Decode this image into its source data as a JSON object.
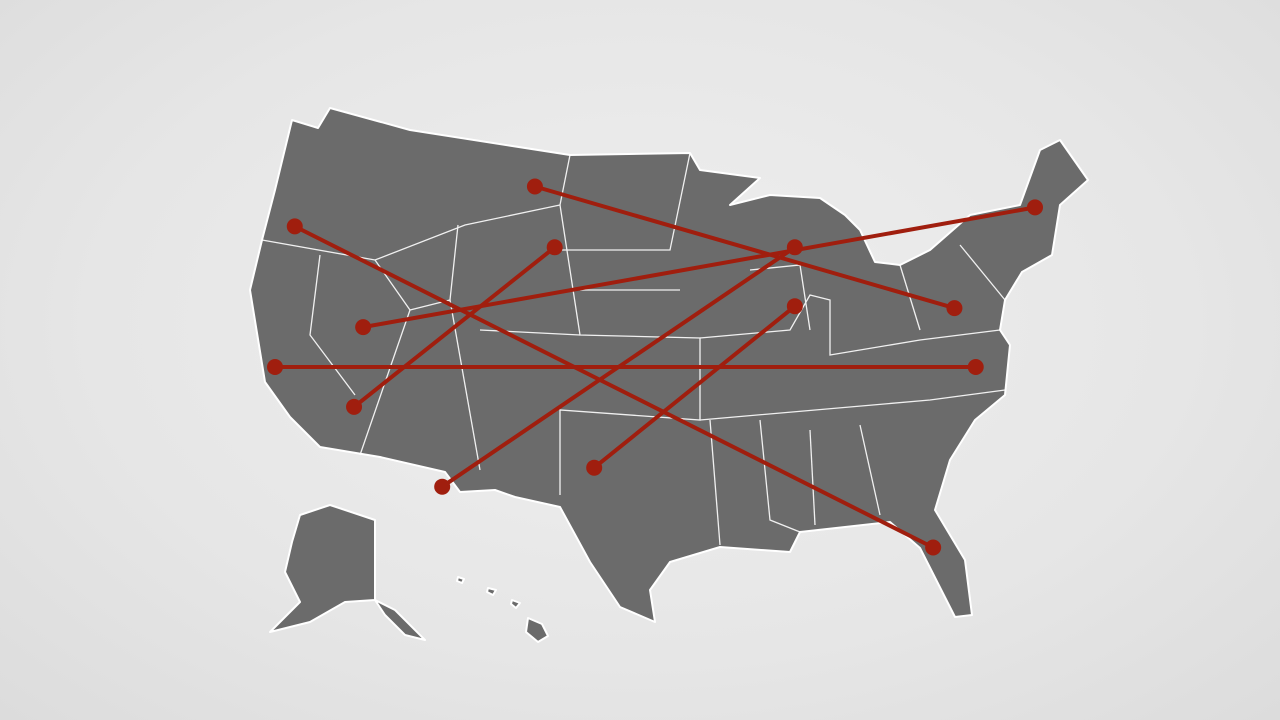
{
  "map": {
    "region": "United States",
    "land_color": "#6b6b6b",
    "border_color": "#ffffff",
    "route_color": "#a01e0e",
    "routes": [
      {
        "from": {
          "lon": -105.3,
          "lat": 47.1
        },
        "to": {
          "lon": -77.7,
          "lat": 40.7
        }
      },
      {
        "from": {
          "lon": -121.1,
          "lat": 45.0
        },
        "to": {
          "lon": -79.1,
          "lat": 28.1
        }
      },
      {
        "from": {
          "lon": -104.0,
          "lat": 43.9
        },
        "to": {
          "lon": -117.2,
          "lat": 35.5
        }
      },
      {
        "from": {
          "lon": -116.6,
          "lat": 39.7
        },
        "to": {
          "lon": -72.4,
          "lat": 46.0
        }
      },
      {
        "from": {
          "lon": -122.4,
          "lat": 37.6
        },
        "to": {
          "lon": -76.3,
          "lat": 37.6
        }
      },
      {
        "from": {
          "lon": -88.2,
          "lat": 43.9
        },
        "to": {
          "lon": -111.4,
          "lat": 31.3
        }
      },
      {
        "from": {
          "lon": -88.2,
          "lat": 40.8
        },
        "to": {
          "lon": -101.4,
          "lat": 32.3
        }
      }
    ]
  }
}
